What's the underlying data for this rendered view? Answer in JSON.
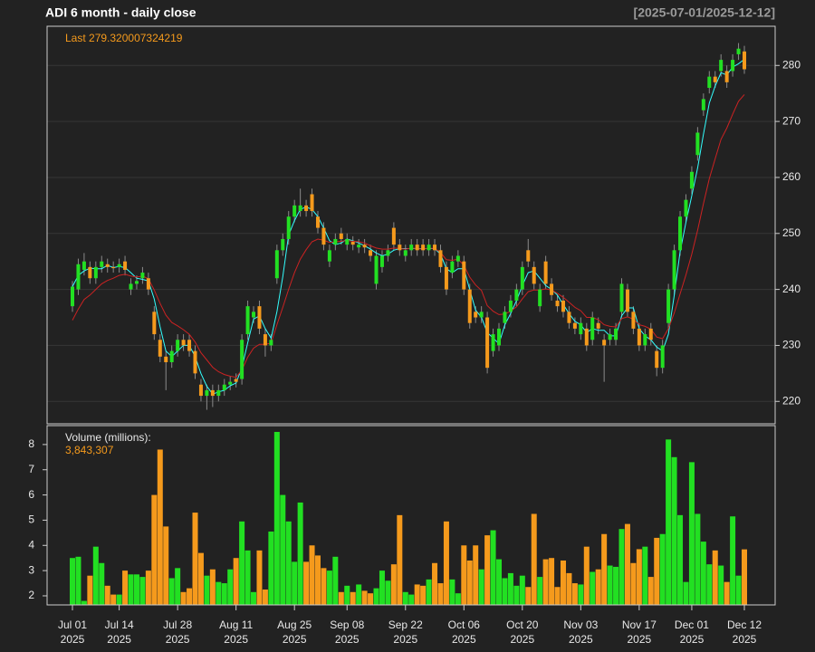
{
  "chart_data": {
    "type": "candlestick",
    "title": "ADI  6 month - daily close",
    "subtitle": "[2025-07-01/2025-12-12]",
    "last_label": "Last 279.320007324219",
    "x": [
      "2025-07-01",
      "2025-07-02",
      "2025-07-03",
      "2025-07-07",
      "2025-07-08",
      "2025-07-09",
      "2025-07-10",
      "2025-07-11",
      "2025-07-14",
      "2025-07-15",
      "2025-07-16",
      "2025-07-17",
      "2025-07-18",
      "2025-07-21",
      "2025-07-22",
      "2025-07-23",
      "2025-07-24",
      "2025-07-25",
      "2025-07-28",
      "2025-07-29",
      "2025-07-30",
      "2025-07-31",
      "2025-08-01",
      "2025-08-04",
      "2025-08-05",
      "2025-08-06",
      "2025-08-07",
      "2025-08-08",
      "2025-08-11",
      "2025-08-12",
      "2025-08-13",
      "2025-08-14",
      "2025-08-15",
      "2025-08-18",
      "2025-08-19",
      "2025-08-20",
      "2025-08-21",
      "2025-08-22",
      "2025-08-25",
      "2025-08-26",
      "2025-08-27",
      "2025-08-28",
      "2025-08-29",
      "2025-09-02",
      "2025-09-03",
      "2025-09-04",
      "2025-09-05",
      "2025-09-08",
      "2025-09-09",
      "2025-09-10",
      "2025-09-11",
      "2025-09-12",
      "2025-09-15",
      "2025-09-16",
      "2025-09-17",
      "2025-09-18",
      "2025-09-19",
      "2025-09-22",
      "2025-09-23",
      "2025-09-24",
      "2025-09-25",
      "2025-09-26",
      "2025-09-29",
      "2025-09-30",
      "2025-10-01",
      "2025-10-02",
      "2025-10-03",
      "2025-10-06",
      "2025-10-07",
      "2025-10-08",
      "2025-10-09",
      "2025-10-10",
      "2025-10-13",
      "2025-10-14",
      "2025-10-15",
      "2025-10-16",
      "2025-10-17",
      "2025-10-20",
      "2025-10-21",
      "2025-10-22",
      "2025-10-23",
      "2025-10-24",
      "2025-10-27",
      "2025-10-28",
      "2025-10-29",
      "2025-10-30",
      "2025-10-31",
      "2025-11-03",
      "2025-11-04",
      "2025-11-05",
      "2025-11-06",
      "2025-11-07",
      "2025-11-10",
      "2025-11-11",
      "2025-11-12",
      "2025-11-13",
      "2025-11-14",
      "2025-11-17",
      "2025-11-18",
      "2025-11-19",
      "2025-11-20",
      "2025-11-21",
      "2025-11-24",
      "2025-11-25",
      "2025-11-26",
      "2025-11-28",
      "2025-12-01",
      "2025-12-02",
      "2025-12-03",
      "2025-12-04",
      "2025-12-05",
      "2025-12-08",
      "2025-12-09",
      "2025-12-10",
      "2025-12-11",
      "2025-12-12"
    ],
    "open": [
      237,
      240,
      243.5,
      244,
      242,
      244,
      244.5,
      244,
      244,
      245,
      240,
      241,
      242,
      242,
      236,
      231,
      228,
      227,
      229,
      231,
      231,
      229,
      223,
      221,
      222,
      221,
      222,
      223,
      224,
      224,
      232,
      235,
      237,
      232,
      230,
      242,
      247,
      249,
      253,
      254,
      255,
      257,
      253,
      251,
      245,
      248,
      250,
      248,
      248.5,
      247.5,
      248,
      247,
      241,
      244,
      246,
      251,
      248,
      246,
      247,
      248,
      248,
      247,
      248,
      247,
      244,
      243,
      245,
      245,
      240,
      236,
      235,
      235,
      229,
      230,
      234,
      236,
      238,
      240,
      247,
      244,
      237,
      245,
      241,
      238,
      238,
      236,
      234,
      232,
      233,
      231,
      234,
      231,
      231,
      231,
      236,
      240,
      236,
      233,
      230,
      233,
      229,
      226,
      234,
      240,
      247,
      253,
      258,
      264,
      272,
      276,
      278,
      279,
      279,
      279,
      282,
      282.5
    ],
    "high": [
      241.5,
      245.5,
      246.5,
      245,
      245,
      246,
      245.5,
      245,
      245.5,
      246,
      242,
      242.5,
      244,
      243,
      237,
      232,
      229,
      230,
      232,
      232,
      232,
      230,
      224,
      223,
      223,
      223,
      224,
      224.5,
      225,
      232,
      238,
      237,
      238,
      233,
      232,
      248,
      250,
      254,
      256,
      258,
      256,
      258,
      254,
      252,
      248,
      250,
      251,
      250,
      249.5,
      249,
      249,
      248,
      247,
      247,
      248,
      252,
      249,
      248,
      249,
      249,
      249,
      249,
      249,
      248,
      245,
      246,
      247,
      246,
      241,
      237,
      237,
      236,
      233,
      234,
      237,
      239,
      241,
      245,
      249,
      245,
      241,
      246,
      242,
      239,
      239,
      237,
      235,
      235,
      234,
      236,
      235,
      232,
      233,
      234,
      242,
      241,
      237,
      234,
      233,
      234,
      230,
      231,
      241,
      248,
      254,
      257,
      262,
      269,
      275,
      279,
      279,
      282,
      280,
      282,
      284,
      283.5
    ],
    "low": [
      236,
      239,
      242.5,
      241,
      241,
      243,
      243,
      243,
      243,
      242.5,
      239,
      240,
      241,
      239,
      231,
      227,
      222,
      226,
      228,
      229,
      228,
      224,
      220,
      218.5,
      219,
      220,
      221,
      222,
      222.5,
      223,
      231,
      234,
      232,
      228,
      229,
      241,
      246,
      248,
      252,
      253,
      253,
      253,
      250,
      247,
      244,
      247,
      248,
      247,
      247,
      246.5,
      246.5,
      245,
      240,
      243,
      245,
      247,
      246,
      245,
      246,
      246,
      246,
      246,
      246,
      243,
      239,
      242,
      244,
      239,
      233,
      234,
      234,
      225,
      228,
      229,
      233,
      235,
      237,
      239,
      244,
      240,
      236,
      240,
      238,
      236,
      235,
      233,
      232,
      231,
      229,
      230,
      232,
      223.5,
      230,
      230,
      235,
      235,
      232,
      229,
      229,
      230,
      224.5,
      225,
      233,
      239,
      246,
      252,
      257,
      263,
      271,
      275,
      276,
      278,
      276,
      278,
      281,
      278.5
    ],
    "close": [
      240.5,
      244.5,
      245,
      242,
      244,
      245,
      244,
      243.8,
      244.5,
      243.5,
      241,
      241.5,
      243,
      240,
      232,
      228,
      227,
      229,
      231,
      230,
      229,
      225,
      221,
      222,
      221,
      222,
      223,
      223.5,
      223.5,
      231,
      237,
      236,
      233,
      230,
      231,
      247,
      249,
      253,
      255,
      255,
      254,
      254,
      251,
      248,
      247,
      249,
      249,
      249,
      248,
      248,
      247.5,
      246,
      246,
      246,
      247,
      248,
      247,
      247,
      248,
      247,
      247,
      248,
      247,
      244,
      240,
      245,
      246,
      240,
      234,
      235,
      236,
      226,
      232,
      233,
      236,
      238,
      240,
      244,
      245,
      241,
      240,
      241,
      239,
      237,
      236,
      234,
      233,
      234,
      230,
      235,
      233,
      230,
      232,
      233,
      241,
      236,
      233,
      230,
      232,
      231,
      226,
      230,
      240,
      247,
      253,
      256,
      261,
      268,
      274,
      278,
      277,
      281,
      277,
      281,
      283,
      279.32
    ],
    "up_color": "#22e022",
    "down_color": "#f59a1c",
    "wick_color": "#8a8a8a",
    "overlays": [
      {
        "color": "#33ffff",
        "values": [
          240.5,
          242.5,
          243.3,
          243.8,
          243.7,
          243.7,
          244.3,
          243.9,
          244.1,
          243.9,
          243,
          242,
          241.8,
          241.5,
          238.3,
          233.3,
          229,
          228,
          229,
          230,
          230,
          228,
          225,
          222.7,
          221.3,
          221.7,
          222,
          222.8,
          223.3,
          226,
          230.5,
          234.7,
          235.3,
          233,
          231.3,
          236,
          242.3,
          249.7,
          252.3,
          254.3,
          254.7,
          254.3,
          253,
          251,
          248.7,
          248,
          248.3,
          249,
          248.7,
          248.3,
          247.8,
          247.2,
          246.5,
          246,
          246.3,
          247,
          247.3,
          247.3,
          247.3,
          247.3,
          247.3,
          247.3,
          247.3,
          246.3,
          243.7,
          243,
          243.7,
          243.7,
          240,
          236.3,
          235,
          232.3,
          231.3,
          230.3,
          233.7,
          235.7,
          238,
          240.7,
          243,
          243.3,
          242,
          240.7,
          240,
          239,
          237.3,
          235.7,
          234.3,
          233.7,
          232.3,
          233,
          232.7,
          232.7,
          231.7,
          231.7,
          235.3,
          236.7,
          236.7,
          233,
          231.7,
          231,
          229.7,
          229,
          232,
          239,
          246.7,
          252,
          256.7,
          261.7,
          267.7,
          273.3,
          276.3,
          278.7,
          278.3,
          279.7,
          280.3,
          281.1
        ]
      },
      {
        "color": "#cc2222",
        "values": [
          234.5,
          236.5,
          238.2,
          239,
          240,
          241,
          241.6,
          242,
          242.5,
          242.7,
          242.4,
          242.2,
          242.4,
          241.9,
          239.9,
          237.5,
          235.4,
          234.1,
          233.5,
          232.8,
          232,
          230.6,
          228.7,
          227.4,
          226.1,
          225.3,
          224.8,
          224.5,
          224.3,
          225.6,
          227.9,
          229.5,
          230.2,
          230.2,
          230.4,
          233.7,
          236.8,
          240,
          243,
          245.4,
          247.1,
          248.5,
          249,
          248.8,
          248.4,
          248.5,
          248.6,
          248.7,
          248.6,
          248.5,
          248.3,
          247.8,
          247.4,
          247.2,
          247.2,
          247.4,
          247.3,
          247.2,
          247.4,
          247.3,
          247.2,
          247.4,
          247.3,
          246.6,
          245.3,
          245.2,
          245.4,
          244.3,
          242.2,
          240.8,
          239.8,
          237.1,
          236.1,
          235.5,
          235.6,
          236.1,
          236.9,
          238.3,
          239.6,
          239.9,
          239.9,
          240.1,
          239.9,
          239.3,
          238.6,
          237.7,
          236.8,
          236.2,
          235,
          235,
          234.6,
          233.7,
          233.4,
          233.3,
          234.8,
          235.1,
          234.7,
          233.7,
          233.4,
          232.9,
          231.5,
          231.2,
          233,
          235.8,
          239.2,
          242.6,
          246.3,
          250.6,
          255.3,
          259.8,
          263.3,
          266.8,
          268.8,
          271.3,
          273.6,
          274.8
        ]
      }
    ],
    "ylim": [
      216,
      287
    ],
    "yticks": [
      220,
      230,
      240,
      250,
      260,
      270,
      280
    ],
    "grid": true,
    "xticks": [
      {
        "value": "2025-07-01",
        "label": [
          "Jul 01",
          "2025"
        ]
      },
      {
        "value": "2025-07-14",
        "label": [
          "Jul 14",
          "2025"
        ]
      },
      {
        "value": "2025-07-28",
        "label": [
          "Jul 28",
          "2025"
        ]
      },
      {
        "value": "2025-08-11",
        "label": [
          "Aug 11",
          "2025"
        ]
      },
      {
        "value": "2025-08-25",
        "label": [
          "Aug 25",
          "2025"
        ]
      },
      {
        "value": "2025-09-08",
        "label": [
          "Sep 08",
          "2025"
        ]
      },
      {
        "value": "2025-09-22",
        "label": [
          "Sep 22",
          "2025"
        ]
      },
      {
        "value": "2025-10-06",
        "label": [
          "Oct 06",
          "2025"
        ]
      },
      {
        "value": "2025-10-20",
        "label": [
          "Oct 20",
          "2025"
        ]
      },
      {
        "value": "2025-11-03",
        "label": [
          "Nov 03",
          "2025"
        ]
      },
      {
        "value": "2025-11-17",
        "label": [
          "Nov 17",
          "2025"
        ]
      },
      {
        "value": "2025-12-01",
        "label": [
          "Dec 01",
          "2025"
        ]
      },
      {
        "value": "2025-12-12",
        "label": [
          "Dec 12",
          "2025"
        ]
      }
    ],
    "volume": {
      "label": "Volume (millions):",
      "last_label": "3,843,307",
      "values": [
        3.5,
        3.55,
        1.8,
        2.8,
        3.95,
        3.3,
        2.4,
        2.05,
        2.05,
        3.0,
        2.85,
        2.85,
        2.75,
        3.0,
        6.0,
        7.8,
        4.75,
        2.7,
        3.1,
        2.15,
        2.3,
        5.3,
        3.7,
        2.8,
        3.05,
        2.55,
        2.5,
        3.05,
        3.5,
        4.95,
        3.8,
        2.15,
        3.8,
        2.25,
        4.55,
        8.5,
        6.0,
        4.95,
        3.35,
        5.7,
        3.35,
        4.0,
        3.6,
        3.1,
        3.0,
        3.55,
        2.15,
        2.4,
        2.15,
        2.45,
        2.2,
        2.1,
        2.3,
        3.0,
        2.6,
        3.25,
        5.2,
        2.15,
        2.05,
        2.45,
        2.4,
        2.65,
        3.3,
        2.5,
        4.95,
        2.65,
        2.1,
        4.0,
        3.4,
        4.0,
        3.05,
        4.4,
        4.6,
        3.45,
        2.7,
        2.9,
        2.4,
        2.8,
        2.35,
        5.25,
        2.75,
        3.45,
        3.5,
        2.35,
        3.4,
        2.9,
        2.5,
        2.45,
        3.95,
        2.95,
        3.05,
        4.45,
        3.2,
        3.15,
        4.65,
        4.85,
        3.3,
        3.85,
        3.95,
        2.75,
        4.3,
        4.45,
        8.2,
        7.5,
        5.2,
        2.55,
        7.3,
        5.25,
        4.15,
        3.25,
        3.8,
        3.2,
        2.55,
        5.15,
        2.8,
        3.843307
      ],
      "ylim": [
        1.64,
        8.75
      ],
      "yticks": [
        2,
        3,
        4,
        5,
        6,
        7,
        8
      ]
    }
  }
}
